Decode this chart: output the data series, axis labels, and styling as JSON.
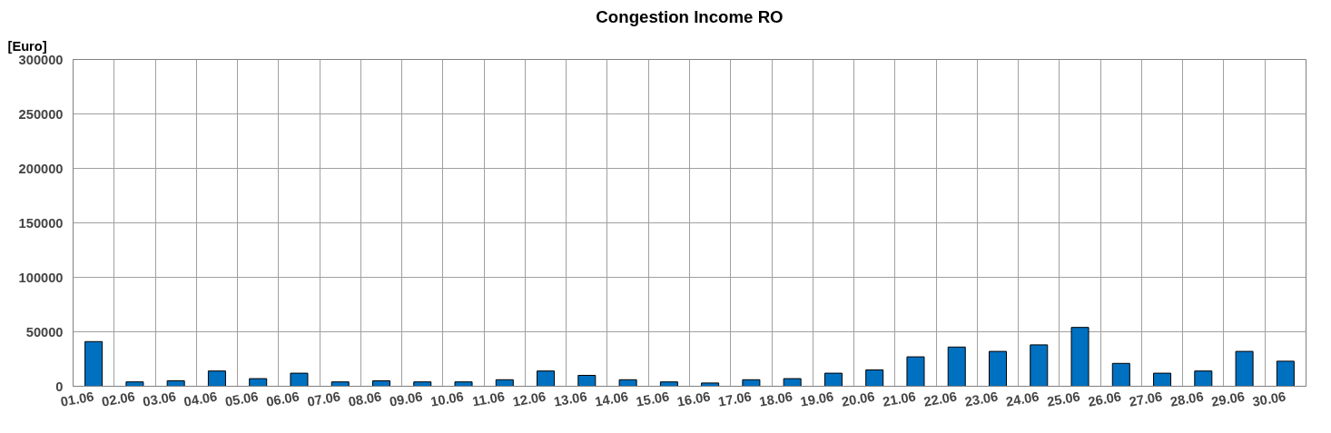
{
  "chart_data": {
    "type": "bar",
    "title": "Congestion Income RO",
    "ylabel": "[Euro]",
    "categories": [
      "01.06",
      "02.06",
      "03.06",
      "04.06",
      "05.06",
      "06.06",
      "07.06",
      "08.06",
      "09.06",
      "10.06",
      "11.06",
      "12.06",
      "13.06",
      "14.06",
      "15.06",
      "16.06",
      "17.06",
      "18.06",
      "19.06",
      "20.06",
      "21.06",
      "22.06",
      "23.06",
      "24.06",
      "25.06",
      "26.06",
      "27.06",
      "28.06",
      "29.06",
      "30.06"
    ],
    "values": [
      41000,
      4000,
      5000,
      14000,
      7000,
      12000,
      4000,
      5000,
      4000,
      4000,
      6000,
      14000,
      10000,
      6000,
      4000,
      3000,
      6000,
      7000,
      12000,
      15000,
      27000,
      36000,
      32000,
      38000,
      54000,
      21000,
      12000,
      14000,
      32000,
      23000
    ],
    "color": "#0070c0",
    "ylim": [
      0,
      300000
    ],
    "yticks": [
      0,
      50000,
      100000,
      150000,
      200000,
      250000,
      300000
    ],
    "grid": true
  }
}
